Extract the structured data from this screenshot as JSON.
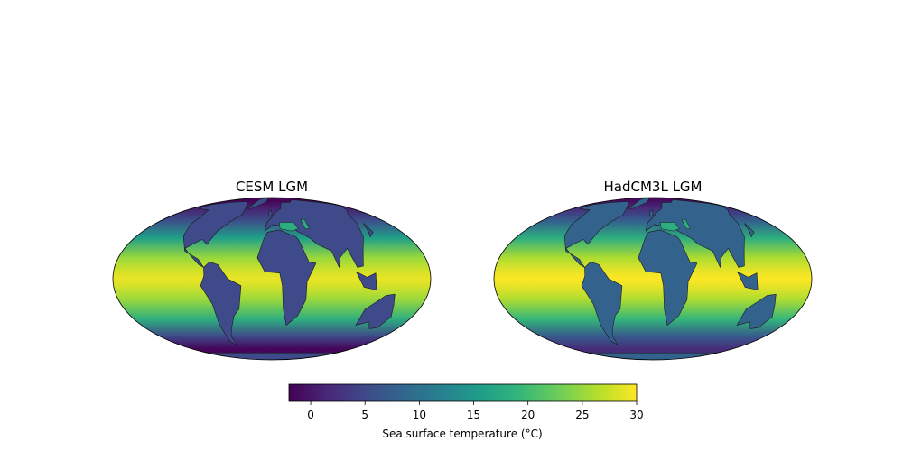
{
  "chart_data": [
    {
      "type": "heatmap",
      "title": "CESM LGM",
      "projection": "Robinson",
      "variable": "sea surface temperature",
      "value_range": [
        -2,
        30
      ],
      "land_color": "#3e4a89",
      "approx_sst_by_latitude": [
        {
          "lat": -90,
          "value": null
        },
        {
          "lat": -60,
          "value": -1.5
        },
        {
          "lat": -45,
          "value": 5
        },
        {
          "lat": -30,
          "value": 18
        },
        {
          "lat": -15,
          "value": 25
        },
        {
          "lat": -5,
          "value": 28
        },
        {
          "lat": 0,
          "value": 29
        },
        {
          "lat": 5,
          "value": 28
        },
        {
          "lat": 15,
          "value": 25
        },
        {
          "lat": 30,
          "value": 16
        },
        {
          "lat": 45,
          "value": 6
        },
        {
          "lat": 60,
          "value": 1
        },
        {
          "lat": 75,
          "value": -1.8
        },
        {
          "lat": 90,
          "value": -1.8
        }
      ]
    },
    {
      "type": "heatmap",
      "title": "HadCM3L LGM",
      "projection": "Robinson",
      "variable": "sea surface temperature",
      "value_range": [
        -2,
        30
      ],
      "land_color": "#33638d",
      "approx_sst_by_latitude": [
        {
          "lat": -90,
          "value": null
        },
        {
          "lat": -60,
          "value": 2
        },
        {
          "lat": -45,
          "value": 7
        },
        {
          "lat": -30,
          "value": 19
        },
        {
          "lat": -15,
          "value": 26
        },
        {
          "lat": -5,
          "value": 29
        },
        {
          "lat": 0,
          "value": 30
        },
        {
          "lat": 5,
          "value": 29
        },
        {
          "lat": 15,
          "value": 26
        },
        {
          "lat": 30,
          "value": 18
        },
        {
          "lat": 45,
          "value": 8
        },
        {
          "lat": 60,
          "value": 2
        },
        {
          "lat": 75,
          "value": -1
        },
        {
          "lat": 90,
          "value": -1.8
        }
      ]
    }
  ],
  "colorbar": {
    "label": "Sea surface temperature (°C)",
    "vmin": -2,
    "vmax": 30,
    "ticks": [
      0,
      5,
      10,
      15,
      20,
      25,
      30
    ],
    "tick_labels": [
      "0",
      "5",
      "10",
      "15",
      "20",
      "25",
      "30"
    ],
    "colormap": "viridis",
    "colormap_stops": [
      "#440154",
      "#482878",
      "#3e4a89",
      "#31688e",
      "#26828e",
      "#1f9e89",
      "#35b779",
      "#6ece58",
      "#b5de2b",
      "#fde725"
    ]
  }
}
